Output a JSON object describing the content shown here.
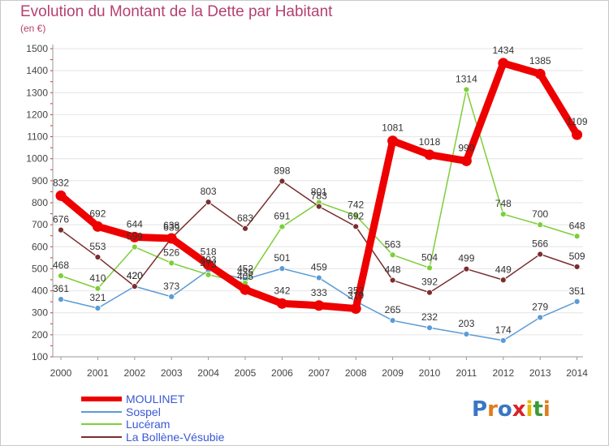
{
  "chart_data": {
    "type": "line",
    "title": "Evolution du Montant de la Dette par Habitant",
    "subtitle": "(en €)",
    "x": [
      "2000",
      "2001",
      "2002",
      "2003",
      "2004",
      "2005",
      "2006",
      "2007",
      "2008",
      "2009",
      "2010",
      "2011",
      "2012",
      "2013",
      "2014"
    ],
    "ylim": [
      100,
      1500
    ],
    "yticks": [
      100,
      200,
      300,
      400,
      500,
      600,
      700,
      800,
      900,
      1000,
      1100,
      1200,
      1300,
      1400,
      1500
    ],
    "grid": "horizontal",
    "legend_position": "bottom-left",
    "series": [
      {
        "name": "MOULINET",
        "color": "#ee0000",
        "highlight": true,
        "values": [
          832,
          692,
          644,
          638,
          518,
          405,
          342,
          333,
          319,
          1081,
          1018,
          990,
          1434,
          1385,
          1109
        ]
      },
      {
        "name": "Sospel",
        "color": "#5b9bd5",
        "values": [
          361,
          321,
          420,
          373,
          493,
          452,
          501,
          459,
          352,
          265,
          232,
          203,
          174,
          279,
          351
        ]
      },
      {
        "name": "Lucéram",
        "color": "#7dce3a",
        "values": [
          468,
          410,
          599,
          526,
          473,
          435,
          691,
          801,
          742,
          563,
          504,
          1314,
          748,
          700,
          648
        ]
      },
      {
        "name": "La Bollène-Vésubie",
        "color": "#7a2e2e",
        "values": [
          676,
          553,
          420,
          639,
          803,
          683,
          898,
          783,
          692,
          448,
          392,
          499,
          449,
          566,
          509
        ]
      }
    ]
  },
  "logo": {
    "text": "Proxiti",
    "colors": [
      "#3a76c4",
      "#e07b1b",
      "#3a76c4",
      "#d9222a",
      "#e6b800",
      "#3a9b3a",
      "#e07b1b"
    ]
  }
}
